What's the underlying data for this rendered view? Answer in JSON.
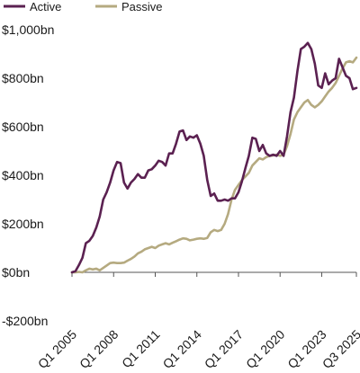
{
  "chart_data": {
    "type": "line",
    "title": "",
    "xlabel": "",
    "ylabel": "",
    "y_unit": "bn",
    "ylim": [
      -200,
      1000
    ],
    "y_ticks": [
      -200,
      0,
      200,
      400,
      600,
      800,
      1000
    ],
    "y_tick_labels": [
      "-$200bn",
      "$0bn",
      "$200bn",
      "$400bn",
      "$600bn",
      "$800bn",
      "$1,000bn"
    ],
    "x_range": [
      "2005 Q1",
      "2025 Q3"
    ],
    "x_ticks": [
      2005.0,
      2008.0,
      2011.0,
      2014.0,
      2017.0,
      2020.0,
      2023.0,
      2025.5
    ],
    "x_tick_labels": [
      "Q1 2005",
      "Q1 2008",
      "Q1 2011",
      "Q1 2014",
      "Q1 2017",
      "Q1 2020",
      "Q1 2023",
      "Q3 2025"
    ],
    "grid": false,
    "legend_position": "top-left",
    "series": [
      {
        "name": "Active",
        "color": "#5b2151",
        "points": [
          [
            2005.0,
            0
          ],
          [
            2005.25,
            5
          ],
          [
            2005.5,
            30
          ],
          [
            2005.75,
            60
          ],
          [
            2006.0,
            120
          ],
          [
            2006.25,
            130
          ],
          [
            2006.5,
            150
          ],
          [
            2006.75,
            185
          ],
          [
            2007.0,
            230
          ],
          [
            2007.25,
            300
          ],
          [
            2007.5,
            330
          ],
          [
            2007.75,
            370
          ],
          [
            2008.0,
            420
          ],
          [
            2008.25,
            455
          ],
          [
            2008.5,
            450
          ],
          [
            2008.75,
            370
          ],
          [
            2009.0,
            345
          ],
          [
            2009.25,
            370
          ],
          [
            2009.5,
            385
          ],
          [
            2009.75,
            405
          ],
          [
            2010.0,
            390
          ],
          [
            2010.25,
            390
          ],
          [
            2010.5,
            420
          ],
          [
            2010.75,
            425
          ],
          [
            2011.0,
            440
          ],
          [
            2011.25,
            460
          ],
          [
            2011.5,
            455
          ],
          [
            2011.75,
            440
          ],
          [
            2012.0,
            490
          ],
          [
            2012.25,
            490
          ],
          [
            2012.5,
            530
          ],
          [
            2012.75,
            580
          ],
          [
            2013.0,
            585
          ],
          [
            2013.25,
            545
          ],
          [
            2013.5,
            560
          ],
          [
            2013.75,
            555
          ],
          [
            2014.0,
            565
          ],
          [
            2014.25,
            530
          ],
          [
            2014.5,
            480
          ],
          [
            2014.75,
            380
          ],
          [
            2015.0,
            315
          ],
          [
            2015.25,
            325
          ],
          [
            2015.5,
            295
          ],
          [
            2015.75,
            295
          ],
          [
            2016.0,
            300
          ],
          [
            2016.25,
            295
          ],
          [
            2016.5,
            305
          ],
          [
            2016.75,
            305
          ],
          [
            2017.0,
            330
          ],
          [
            2017.25,
            375
          ],
          [
            2017.5,
            430
          ],
          [
            2017.75,
            480
          ],
          [
            2018.0,
            555
          ],
          [
            2018.25,
            550
          ],
          [
            2018.5,
            500
          ],
          [
            2018.75,
            525
          ],
          [
            2019.0,
            490
          ],
          [
            2019.25,
            480
          ],
          [
            2019.5,
            485
          ],
          [
            2019.75,
            480
          ],
          [
            2020.0,
            500
          ],
          [
            2020.25,
            480
          ],
          [
            2020.5,
            560
          ],
          [
            2020.75,
            660
          ],
          [
            2021.0,
            720
          ],
          [
            2021.25,
            830
          ],
          [
            2021.5,
            920
          ],
          [
            2021.75,
            930
          ],
          [
            2022.0,
            945
          ],
          [
            2022.25,
            920
          ],
          [
            2022.5,
            860
          ],
          [
            2022.75,
            770
          ],
          [
            2023.0,
            760
          ],
          [
            2023.25,
            820
          ],
          [
            2023.5,
            775
          ],
          [
            2023.75,
            790
          ],
          [
            2024.0,
            800
          ],
          [
            2024.25,
            880
          ],
          [
            2024.5,
            845
          ],
          [
            2024.75,
            810
          ],
          [
            2025.0,
            800
          ],
          [
            2025.25,
            755
          ],
          [
            2025.5,
            760
          ]
        ]
      },
      {
        "name": "Passive",
        "color": "#b5aa80",
        "points": [
          [
            2005.0,
            0
          ],
          [
            2005.25,
            0
          ],
          [
            2005.5,
            2
          ],
          [
            2005.75,
            0
          ],
          [
            2006.0,
            8
          ],
          [
            2006.25,
            15
          ],
          [
            2006.5,
            12
          ],
          [
            2006.75,
            15
          ],
          [
            2007.0,
            8
          ],
          [
            2007.25,
            18
          ],
          [
            2007.5,
            28
          ],
          [
            2007.75,
            38
          ],
          [
            2008.0,
            40
          ],
          [
            2008.25,
            38
          ],
          [
            2008.5,
            38
          ],
          [
            2008.75,
            40
          ],
          [
            2009.0,
            48
          ],
          [
            2009.25,
            55
          ],
          [
            2009.5,
            65
          ],
          [
            2009.75,
            78
          ],
          [
            2010.0,
            85
          ],
          [
            2010.25,
            95
          ],
          [
            2010.5,
            100
          ],
          [
            2010.75,
            105
          ],
          [
            2011.0,
            100
          ],
          [
            2011.25,
            110
          ],
          [
            2011.5,
            115
          ],
          [
            2011.75,
            120
          ],
          [
            2012.0,
            115
          ],
          [
            2012.25,
            122
          ],
          [
            2012.5,
            128
          ],
          [
            2012.75,
            135
          ],
          [
            2013.0,
            140
          ],
          [
            2013.25,
            138
          ],
          [
            2013.5,
            132
          ],
          [
            2013.75,
            135
          ],
          [
            2014.0,
            138
          ],
          [
            2014.25,
            140
          ],
          [
            2014.5,
            138
          ],
          [
            2014.75,
            142
          ],
          [
            2015.0,
            165
          ],
          [
            2015.25,
            175
          ],
          [
            2015.5,
            170
          ],
          [
            2015.75,
            175
          ],
          [
            2016.0,
            200
          ],
          [
            2016.25,
            240
          ],
          [
            2016.5,
            300
          ],
          [
            2016.75,
            340
          ],
          [
            2017.0,
            360
          ],
          [
            2017.25,
            380
          ],
          [
            2017.5,
            395
          ],
          [
            2017.75,
            410
          ],
          [
            2018.0,
            440
          ],
          [
            2018.25,
            455
          ],
          [
            2018.5,
            470
          ],
          [
            2018.75,
            465
          ],
          [
            2019.0,
            475
          ],
          [
            2019.25,
            480
          ],
          [
            2019.5,
            482
          ],
          [
            2019.75,
            485
          ],
          [
            2020.0,
            480
          ],
          [
            2020.25,
            485
          ],
          [
            2020.5,
            520
          ],
          [
            2020.75,
            570
          ],
          [
            2021.0,
            630
          ],
          [
            2021.25,
            660
          ],
          [
            2021.5,
            680
          ],
          [
            2021.75,
            700
          ],
          [
            2022.0,
            710
          ],
          [
            2022.25,
            690
          ],
          [
            2022.5,
            680
          ],
          [
            2022.75,
            690
          ],
          [
            2023.0,
            705
          ],
          [
            2023.25,
            725
          ],
          [
            2023.5,
            745
          ],
          [
            2023.75,
            760
          ],
          [
            2024.0,
            780
          ],
          [
            2024.25,
            810
          ],
          [
            2024.5,
            840
          ],
          [
            2024.75,
            865
          ],
          [
            2025.0,
            870
          ],
          [
            2025.25,
            865
          ],
          [
            2025.5,
            885
          ]
        ]
      }
    ]
  }
}
